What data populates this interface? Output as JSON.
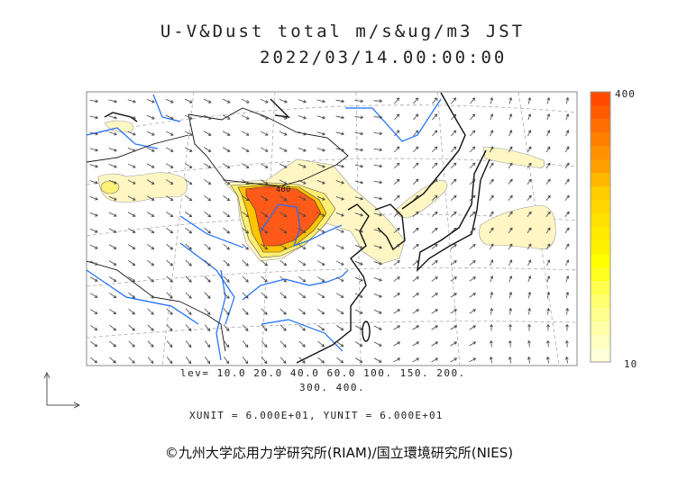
{
  "title": "U-V&Dust total m/s&ug/m3 JST",
  "datetime": "2022/03/14.00:00:00",
  "colorbar": {
    "max_label": "400",
    "min_label": "10",
    "colors": [
      "#ff4a00",
      "#ff5a00",
      "#ff6e00",
      "#ff7e00",
      "#ff9200",
      "#ffa000",
      "#ffb800",
      "#ffcc00",
      "#ffd600",
      "#ffe000",
      "#ffea00",
      "#fff200",
      "#ffff00",
      "#ffff20",
      "#ffff50",
      "#ffff70",
      "#ffff90",
      "#ffffaa",
      "#ffffc0",
      "#ffffd8"
    ]
  },
  "levels_line1": "lev= 10.0 20.0 40.0 60.0 100. 150. 200.",
  "levels_line2": "300. 400.",
  "units": "XUNIT = 6.000E+01, YUNIT = 6.000E+01",
  "contour_label": "400",
  "copyright": "©九州大学応用力学研究所(RIAM)/国立環境研究所(NIES)",
  "colors": {
    "river": "#1a6cff",
    "coast": "#111111",
    "dust_high": "#ff5a1a",
    "dust_low": "#fff8c0"
  }
}
